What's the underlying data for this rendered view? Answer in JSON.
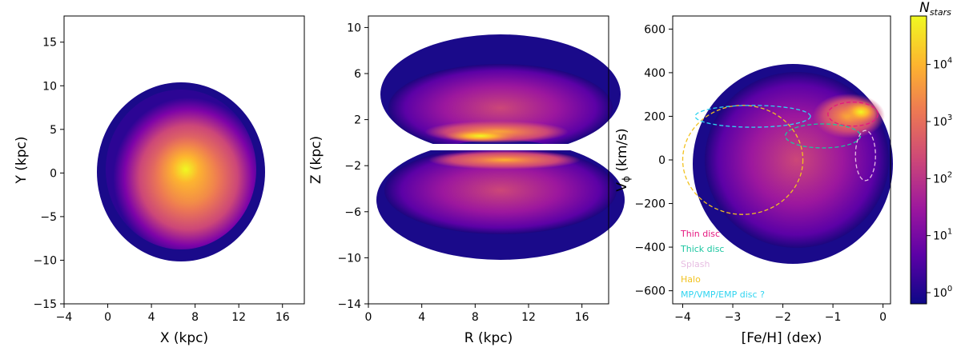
{
  "chart_data": [
    {
      "type": "heatmap",
      "xlabel": "X (kpc)",
      "ylabel": "Y (kpc)",
      "xlim": [
        -4,
        18
      ],
      "ylim": [
        -15,
        18
      ],
      "xticks": [
        -4,
        0,
        4,
        8,
        12,
        16
      ],
      "xtick_labels": [
        "−4",
        "0",
        "4",
        "8",
        "12",
        "16"
      ],
      "yticks": [
        -15,
        -10,
        -5,
        0,
        5,
        10,
        15
      ],
      "ytick_labels": [
        "−15",
        "−10",
        "−5",
        "0",
        "5",
        "10",
        "15"
      ],
      "grid": false
    },
    {
      "type": "heatmap",
      "xlabel": "R (kpc)",
      "ylabel": "Z (kpc)",
      "xlim": [
        0,
        18
      ],
      "ylim": [
        -14,
        11
      ],
      "xticks": [
        0,
        4,
        8,
        12,
        16
      ],
      "xtick_labels": [
        "0",
        "4",
        "8",
        "12",
        "16"
      ],
      "yticks": [
        -14,
        -10,
        -6,
        -2,
        2,
        6,
        10
      ],
      "ytick_labels": [
        "−14",
        "−10",
        "−6",
        "−2",
        "2",
        "6",
        "10"
      ],
      "grid": false
    },
    {
      "type": "heatmap",
      "xlabel": "[Fe/H] (dex)",
      "ylabel": "V",
      "ylabel_sub": "ϕ",
      "ylabel_unit": " (km/s)",
      "xlim": [
        -4.2,
        0.15
      ],
      "ylim": [
        -660,
        660
      ],
      "xticks": [
        -4,
        -3,
        -2,
        -1,
        0
      ],
      "xtick_labels": [
        "−4",
        "−3",
        "−2",
        "−1",
        "0"
      ],
      "yticks": [
        -600,
        -400,
        -200,
        0,
        200,
        400,
        600
      ],
      "ytick_labels": [
        "−600",
        "−400",
        "−200",
        "0",
        "200",
        "400",
        "600"
      ],
      "grid": false,
      "legend_placement": "lower-left",
      "annotations": [
        {
          "label": "Thin disc",
          "color": "#e5177f",
          "center": [
            -0.6,
            210
          ],
          "width": 1.0,
          "height": 110
        },
        {
          "label": "Thick disc",
          "color": "#1bc6a0",
          "center": [
            -1.2,
            110
          ],
          "width": 1.5,
          "height": 110
        },
        {
          "label": "Splash",
          "color": "#e7bde2",
          "center": [
            -0.35,
            20
          ],
          "width": 0.4,
          "height": 230
        },
        {
          "label": "Halo",
          "color": "#f2c21f",
          "center": [
            -2.8,
            0
          ],
          "width": 2.4,
          "height": 500
        },
        {
          "label": "MP/VMP/EMP disc ?",
          "color": "#2fd4f0",
          "center": [
            -2.6,
            200
          ],
          "width": 2.3,
          "height": 100
        }
      ]
    }
  ],
  "colorbar": {
    "label": "N",
    "label_sub": "stars",
    "scale": "log",
    "ticks": [
      {
        "base": "10",
        "exp": "0"
      },
      {
        "base": "10",
        "exp": "1"
      },
      {
        "base": "10",
        "exp": "2"
      },
      {
        "base": "10",
        "exp": "3"
      },
      {
        "base": "10",
        "exp": "4"
      }
    ],
    "colormap": [
      "#0d0887",
      "#5c01a6",
      "#9c179e",
      "#cc4778",
      "#ed7953",
      "#fdb42f",
      "#f0f921"
    ]
  }
}
